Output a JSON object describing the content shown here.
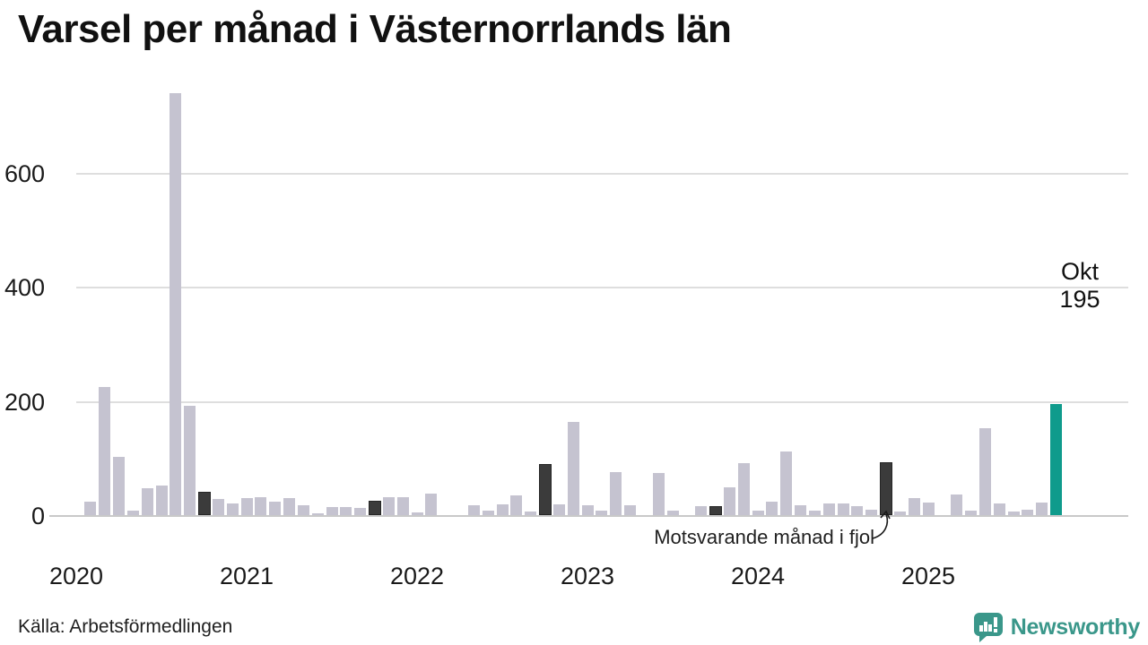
{
  "title": "Varsel per månad i Västernorrlands län",
  "source": "Källa: Arbetsförmedlingen",
  "brand": {
    "name": "Newsworthy",
    "color": "#3a978a"
  },
  "colors": {
    "bar_default": "#c5c3d0",
    "bar_last_year": "#3b3b3b",
    "bar_current": "#0f9b8c",
    "gridline": "#dedede",
    "baseline": "#c9c9c9",
    "text": "#1a1a1a"
  },
  "chart_data": {
    "type": "bar",
    "title": "Varsel per månad i Västernorrlands län",
    "xlabel": "",
    "ylabel": "",
    "yticks": [
      0,
      200,
      400,
      600
    ],
    "ylim": [
      0,
      760
    ],
    "grid": "horizontal",
    "legend_position": "none",
    "x_year_labels": [
      "2020",
      "2021",
      "2022",
      "2023",
      "2024",
      "2025"
    ],
    "months": [
      "jan 2020",
      "feb 2020",
      "mar 2020",
      "apr 2020",
      "maj 2020",
      "jun 2020",
      "jul 2020",
      "aug 2020",
      "sep 2020",
      "okt 2020",
      "nov 2020",
      "dec 2020",
      "jan 2021",
      "feb 2021",
      "mar 2021",
      "apr 2021",
      "maj 2021",
      "jun 2021",
      "jul 2021",
      "aug 2021",
      "sep 2021",
      "okt 2021",
      "nov 2021",
      "dec 2021",
      "jan 2022",
      "feb 2022",
      "mar 2022",
      "apr 2022",
      "maj 2022",
      "jun 2022",
      "jul 2022",
      "aug 2022",
      "sep 2022",
      "okt 2022",
      "nov 2022",
      "dec 2022",
      "jan 2023",
      "feb 2023",
      "mar 2023",
      "apr 2023",
      "maj 2023",
      "jun 2023",
      "jul 2023",
      "aug 2023",
      "sep 2023",
      "okt 2023",
      "nov 2023",
      "dec 2023",
      "jan 2024",
      "feb 2024",
      "mar 2024",
      "apr 2024",
      "maj 2024",
      "jun 2024",
      "jul 2024",
      "aug 2024",
      "sep 2024",
      "okt 2024",
      "nov 2024",
      "dec 2024",
      "jan 2025",
      "feb 2025",
      "mar 2025",
      "apr 2025",
      "maj 2025",
      "jun 2025",
      "jul 2025",
      "aug 2025",
      "sep 2025",
      "okt 2025"
    ],
    "values": [
      0,
      23,
      225,
      102,
      8,
      47,
      52,
      740,
      191,
      37,
      28,
      20,
      30,
      32,
      24,
      30,
      18,
      4,
      14,
      15,
      13,
      22,
      32,
      32,
      5,
      37,
      0,
      0,
      17,
      8,
      19,
      34,
      6,
      86,
      19,
      163,
      18,
      8,
      75,
      17,
      0,
      74,
      8,
      0,
      16,
      12,
      48,
      91,
      8,
      23,
      111,
      18,
      8,
      21,
      20,
      16,
      10,
      90,
      6,
      30,
      22,
      0,
      36,
      8,
      152,
      21,
      7,
      9,
      22,
      195
    ],
    "highlight_previous_october_indices": [
      9,
      21,
      33,
      45,
      57
    ],
    "current_index": 69,
    "current_point": {
      "label": "Okt",
      "value": "195"
    },
    "annotation_last_year": "Motsvarande månad i fjol"
  }
}
